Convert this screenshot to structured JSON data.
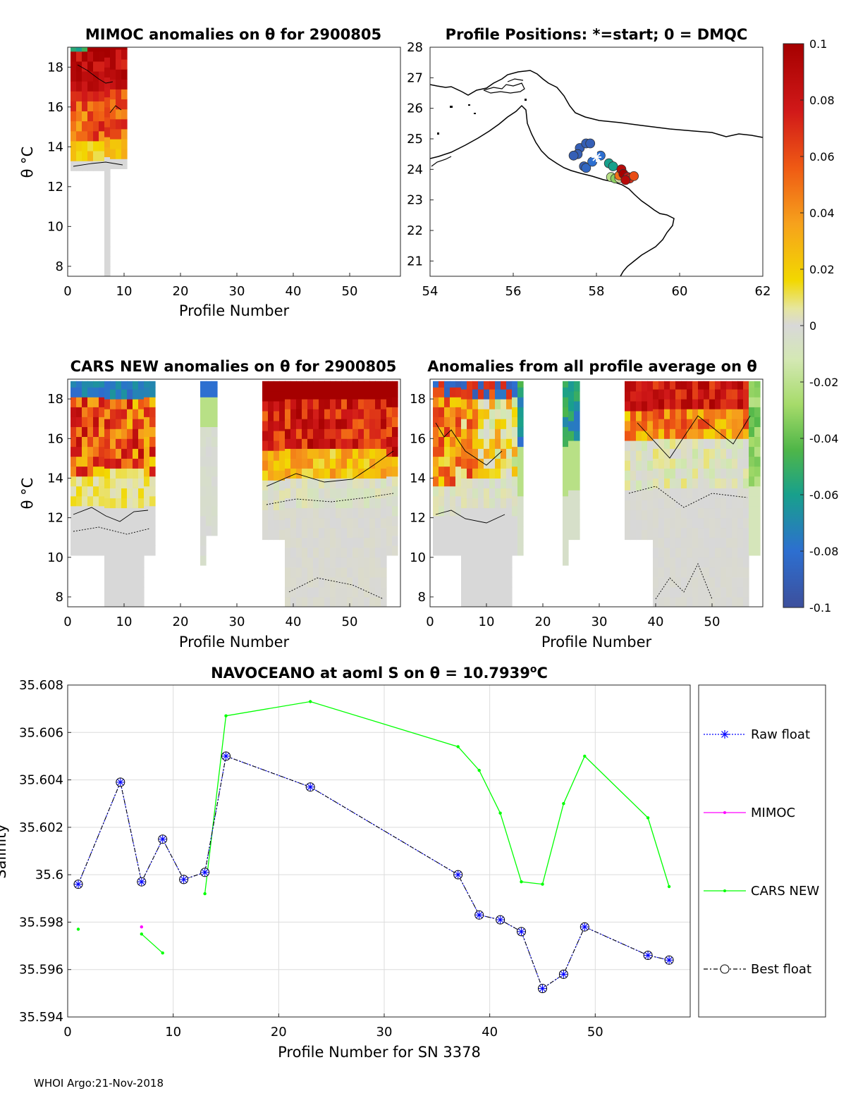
{
  "footer": "WHOI Argo:21-Nov-2018",
  "colors": {
    "raw_float": "#0000ff",
    "mimoc": "#ff00ff",
    "cars_new": "#00ff00",
    "best_float": "#000000",
    "land": "#000000"
  },
  "colorbar": {
    "ticks": [
      "0.1",
      "0.08",
      "0.06",
      "0.04",
      "0.02",
      "0",
      "-0.02",
      "-0.04",
      "-0.06",
      "-0.08",
      "-0.1"
    ],
    "range": [
      -0.1,
      0.1
    ],
    "colormap": "parula-jet-like (blue-green-grey-yellow-red)"
  },
  "chart_data": [
    {
      "id": "mimoc",
      "type": "heatmap",
      "title": "MIMOC anomalies on θ  for 2900805",
      "xlabel": "Profile Number",
      "ylabel": "θ °C",
      "xticks": [
        "0",
        "10",
        "20",
        "30",
        "40",
        "50"
      ],
      "yticks": [
        "8",
        "10",
        "12",
        "14",
        "16",
        "18"
      ],
      "xlim": [
        0,
        59
      ],
      "ylim": [
        7.5,
        19
      ],
      "coverage": "profiles 1-10 only; mostly positive (red/orange) anomalies above ~13°C"
    },
    {
      "id": "map",
      "type": "scatter",
      "title": "Profile Positions: *=start; 0 = DMQC",
      "xticks": [
        "54",
        "56",
        "58",
        "60",
        "62"
      ],
      "yticks": [
        "21",
        "22",
        "23",
        "24",
        "25",
        "26",
        "27",
        "28"
      ],
      "xlim": [
        54,
        62
      ],
      "ylim": [
        20.5,
        28
      ],
      "start_marker": {
        "lon": 58.0,
        "lat": 24.4
      },
      "positions": [
        {
          "lon": 57.6,
          "lat": 24.7,
          "c": -0.09
        },
        {
          "lon": 57.75,
          "lat": 24.85,
          "c": -0.09
        },
        {
          "lon": 57.85,
          "lat": 24.85,
          "c": -0.09
        },
        {
          "lon": 57.55,
          "lat": 24.5,
          "c": -0.09
        },
        {
          "lon": 57.45,
          "lat": 24.45,
          "c": -0.09
        },
        {
          "lon": 57.7,
          "lat": 24.1,
          "c": -0.09
        },
        {
          "lon": 57.75,
          "lat": 24.05,
          "c": -0.085
        },
        {
          "lon": 57.9,
          "lat": 24.25,
          "c": -0.08
        },
        {
          "lon": 58.1,
          "lat": 24.45,
          "c": -0.08
        },
        {
          "lon": 58.3,
          "lat": 24.2,
          "c": -0.06
        },
        {
          "lon": 58.4,
          "lat": 24.1,
          "c": -0.06
        },
        {
          "lon": 58.35,
          "lat": 23.75,
          "c": -0.02
        },
        {
          "lon": 58.45,
          "lat": 23.7,
          "c": -0.03
        },
        {
          "lon": 58.55,
          "lat": 23.72,
          "c": 0.01
        },
        {
          "lon": 58.55,
          "lat": 23.8,
          "c": 0.05
        },
        {
          "lon": 58.6,
          "lat": 24.0,
          "c": 0.09
        },
        {
          "lon": 58.65,
          "lat": 23.85,
          "c": 0.1
        },
        {
          "lon": 58.75,
          "lat": 23.75,
          "c": 0.08
        },
        {
          "lon": 58.8,
          "lat": 23.7,
          "c": 0.07
        },
        {
          "lon": 58.9,
          "lat": 23.78,
          "c": 0.06
        },
        {
          "lon": 58.7,
          "lat": 23.65,
          "c": 0.09
        }
      ]
    },
    {
      "id": "cars",
      "type": "heatmap",
      "title": "CARS NEW anomalies on θ for 2900805",
      "xlabel": "Profile Number",
      "ylabel": "θ °C",
      "xticks": [
        "0",
        "10",
        "20",
        "30",
        "40",
        "50"
      ],
      "yticks": [
        "8",
        "10",
        "12",
        "14",
        "16",
        "18"
      ],
      "xlim": [
        0,
        59
      ],
      "ylim": [
        7.5,
        19
      ],
      "coverage": "profiles 1-15, 23-26, 35-58; positive anomalies above ~13°C, near zero below"
    },
    {
      "id": "allavg",
      "type": "heatmap",
      "title": "Anomalies from all profile average on θ",
      "xlabel": "Profile Number",
      "xticks": [
        "0",
        "10",
        "20",
        "30",
        "40",
        "50"
      ],
      "yticks": [
        "8",
        "10",
        "12",
        "14",
        "16",
        "18"
      ],
      "xlim": [
        0,
        59
      ],
      "ylim": [
        7.5,
        19
      ],
      "coverage": "profiles 1-15, 23-26, 35-58; mixed anomalies near surface, near zero at depth"
    },
    {
      "id": "salinity",
      "type": "line",
      "title_prefix": "NAVOCEANO at aoml S on θ = 10.7939",
      "title_sup": "o",
      "title_suffix": "C",
      "xlabel": "Profile Number for SN 3378",
      "ylabel": "Salinity",
      "xticks": [
        "0",
        "10",
        "20",
        "30",
        "40",
        "50"
      ],
      "yticks": [
        "35.594",
        "35.596",
        "35.598",
        "35.6",
        "35.602",
        "35.604",
        "35.606",
        "35.608"
      ],
      "xlim": [
        0,
        59
      ],
      "ylim": [
        35.594,
        35.608
      ],
      "grid": true,
      "legend_position": "outside-right",
      "series": [
        {
          "name": "Raw float",
          "style": "dotted-star",
          "x": [
            1,
            5,
            7,
            9,
            11,
            13,
            15,
            23,
            37,
            39,
            41,
            43,
            45,
            47,
            49,
            55,
            57
          ],
          "y": [
            35.5996,
            35.6039,
            35.5997,
            35.6015,
            35.5998,
            35.6001,
            35.605,
            35.6037,
            35.6,
            35.5983,
            35.5981,
            35.5976,
            35.5952,
            35.5958,
            35.5978,
            35.5966,
            35.5964
          ]
        },
        {
          "name": "MIMOC",
          "style": "solid-dot",
          "x": [
            7
          ],
          "y": [
            35.5978
          ]
        },
        {
          "name": "CARS NEW",
          "style": "solid-dot",
          "segments": [
            {
              "x": [
                1
              ],
              "y": [
                35.5977
              ]
            },
            {
              "x": [
                7,
                9
              ],
              "y": [
                35.5975,
                35.5967
              ]
            },
            {
              "x": [
                13,
                15,
                23,
                37,
                39,
                41,
                43,
                45,
                47,
                49,
                55,
                57
              ],
              "y": [
                35.5992,
                35.6067,
                35.6073,
                35.6054,
                35.6044,
                35.6026,
                35.5997,
                35.5996,
                35.603,
                35.605,
                35.6024,
                35.5995
              ]
            }
          ]
        },
        {
          "name": "Best float",
          "style": "dashdot-circle",
          "x": [
            1,
            5,
            7,
            9,
            11,
            13,
            15,
            23,
            37,
            39,
            41,
            43,
            45,
            47,
            49,
            55,
            57
          ],
          "y": [
            35.5996,
            35.6039,
            35.5997,
            35.6015,
            35.5998,
            35.6001,
            35.605,
            35.6037,
            35.6,
            35.5983,
            35.5981,
            35.5976,
            35.5952,
            35.5958,
            35.5978,
            35.5966,
            35.5964
          ]
        }
      ]
    }
  ]
}
